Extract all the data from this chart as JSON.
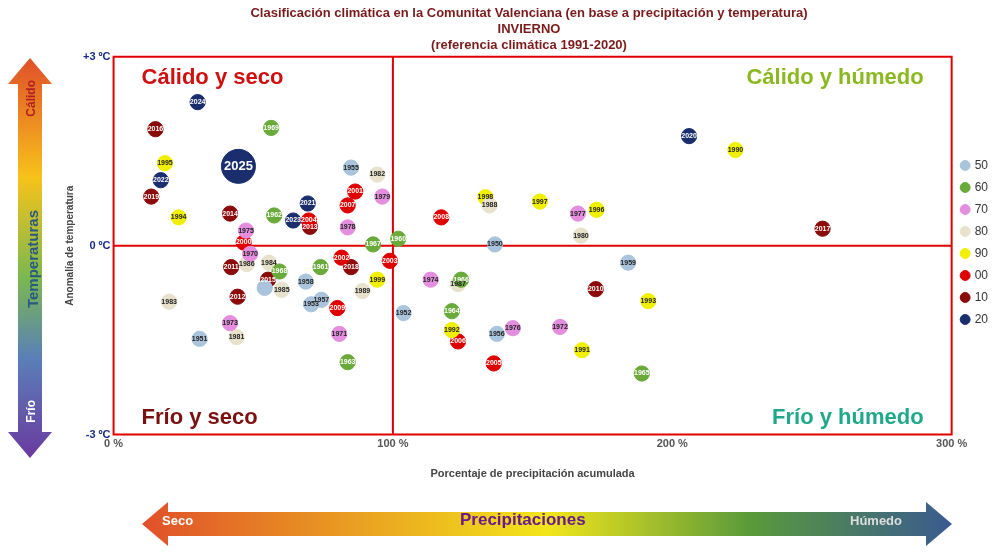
{
  "chart_data": {
    "type": "bubble",
    "title": "Clasificación climática en la Comunitat Valenciana (en base a precipitación y temperatura)",
    "subtitle": "INVIERNO\n(referencia climática 1991-2020)",
    "xlabel": "Porcentaje de precipitación acumulada",
    "ylabel": "Anomalía de temperatura",
    "xlim": [
      0,
      300
    ],
    "xticks": [
      {
        "value": 0,
        "label": "0 %"
      },
      {
        "value": 100,
        "label": "100 %"
      },
      {
        "value": 200,
        "label": "200 %"
      },
      {
        "value": 300,
        "label": "300 %"
      }
    ],
    "ylim": [
      -3,
      3
    ],
    "yticks": [
      {
        "value": -3,
        "label": "-3 ºC"
      },
      {
        "value": 0,
        "label": "0 ºC"
      },
      {
        "value": 3,
        "label": "+3 ºC"
      }
    ],
    "grid": false,
    "legend": "right",
    "ref_lines": [
      {
        "axis": "x",
        "value": 100,
        "color": "#e00000"
      },
      {
        "axis": "y",
        "value": 0,
        "color": "#e00000"
      }
    ],
    "annotations": [
      "Cálido y seco",
      "Cálido y húmedo",
      "Frío y seco",
      "Frío y húmedo",
      "Cálido",
      "Temperaturas",
      "Frío",
      "Seco",
      "Precipitaciones",
      "Húmedo",
      {
        "text": "1955",
        "x": 85.0,
        "y": 1.24
      },
      {
        "text": "1950",
        "x": 136.5,
        "y": 0.02
      },
      {
        "text": "1959",
        "x": 184.2,
        "y": -0.27
      },
      {
        "text": "1958",
        "x": 68.8,
        "y": -0.57
      },
      {
        "text": "1953",
        "x": 70.7,
        "y": -0.93
      },
      {
        "text": "1957",
        "x": 74.4,
        "y": -0.86
      },
      {
        "text": "1951",
        "x": 30.8,
        "y": -1.48
      },
      {
        "text": "1952",
        "x": 103.8,
        "y": -1.07
      },
      {
        "text": "1956",
        "x": 137.2,
        "y": -1.4
      },
      {
        "text": "1969",
        "x": 56.4,
        "y": 1.87
      },
      {
        "text": "1962",
        "x": 57.5,
        "y": 0.48
      },
      {
        "text": "1967",
        "x": 92.9,
        "y": 0.02
      },
      {
        "text": "1960",
        "x": 101.9,
        "y": 0.11
      },
      {
        "text": "1968",
        "x": 59.4,
        "y": -0.41
      },
      {
        "text": "1961",
        "x": 74.1,
        "y": -0.34
      },
      {
        "text": "1963",
        "x": 83.8,
        "y": -1.85
      },
      {
        "text": "1966",
        "x": 124.4,
        "y": -0.54
      },
      {
        "text": "1964",
        "x": 121.1,
        "y": -1.04
      },
      {
        "text": "1965",
        "x": 189.1,
        "y": -2.03
      },
      {
        "text": "1975",
        "x": 47.4,
        "y": 0.24
      },
      {
        "text": "1979",
        "x": 96.2,
        "y": 0.78
      },
      {
        "text": "1978",
        "x": 83.8,
        "y": 0.29
      },
      {
        "text": "1970",
        "x": 48.9,
        "y": -0.13
      },
      {
        "text": "1973",
        "x": 41.7,
        "y": -1.23
      },
      {
        "text": "1971",
        "x": 80.8,
        "y": -1.4
      },
      {
        "text": "1977",
        "x": 166.2,
        "y": 0.51
      },
      {
        "text": "1974",
        "x": 113.5,
        "y": -0.54
      },
      {
        "text": "1976",
        "x": 142.9,
        "y": -1.31
      },
      {
        "text": "1972",
        "x": 159.8,
        "y": -1.29
      },
      {
        "text": "1982",
        "x": 94.4,
        "y": 1.13
      },
      {
        "text": "1986",
        "x": 47.7,
        "y": -0.29
      },
      {
        "text": "1984",
        "x": 55.6,
        "y": -0.27
      },
      {
        "text": "1985",
        "x": 60.2,
        "y": -0.7
      },
      {
        "text": "1989",
        "x": 89.1,
        "y": -0.72
      },
      {
        "text": "1983",
        "x": 19.9,
        "y": -0.89
      },
      {
        "text": "1981",
        "x": 44.0,
        "y": -1.45
      },
      {
        "text": "1988",
        "x": 134.6,
        "y": 0.64
      },
      {
        "text": "1980",
        "x": 167.3,
        "y": 0.16
      },
      {
        "text": "1987",
        "x": 123.3,
        "y": -0.61
      },
      {
        "text": "1995",
        "x": 18.4,
        "y": 1.31
      },
      {
        "text": "1994",
        "x": 23.3,
        "y": 0.45
      },
      {
        "text": "1999",
        "x": 94.4,
        "y": -0.54
      },
      {
        "text": "1990",
        "x": 222.6,
        "y": 1.52
      },
      {
        "text": "1998",
        "x": 133.1,
        "y": 0.77
      },
      {
        "text": "1997",
        "x": 152.6,
        "y": 0.7
      },
      {
        "text": "1996",
        "x": 172.9,
        "y": 0.57
      },
      {
        "text": "1993",
        "x": 191.4,
        "y": -0.88
      },
      {
        "text": "1992",
        "x": 121.1,
        "y": -1.34
      },
      {
        "text": "1991",
        "x": 167.7,
        "y": -1.66
      },
      {
        "text": "2000",
        "x": 46.6,
        "y": 0.05
      },
      {
        "text": "2001",
        "x": 86.5,
        "y": 0.86
      },
      {
        "text": "2007",
        "x": 83.8,
        "y": 0.64
      },
      {
        "text": "2004",
        "x": 69.9,
        "y": 0.4
      },
      {
        "text": "2002",
        "x": 81.6,
        "y": -0.19
      },
      {
        "text": "2003",
        "x": 98.9,
        "y": -0.24
      },
      {
        "text": "2009",
        "x": 80.1,
        "y": -0.99
      },
      {
        "text": "2008",
        "x": 117.3,
        "y": 0.45
      },
      {
        "text": "2006",
        "x": 123.3,
        "y": -1.52
      },
      {
        "text": "2005",
        "x": 136.1,
        "y": -1.87
      },
      {
        "text": "2016",
        "x": 15.0,
        "y": 1.85
      },
      {
        "text": "2019",
        "x": 13.5,
        "y": 0.78
      },
      {
        "text": "2014",
        "x": 41.7,
        "y": 0.51
      },
      {
        "text": "2013",
        "x": 70.3,
        "y": 0.3
      },
      {
        "text": "2011",
        "x": 42.1,
        "y": -0.34
      },
      {
        "text": "2015",
        "x": 55.3,
        "y": -0.54
      },
      {
        "text": "2012",
        "x": 44.4,
        "y": -0.81
      },
      {
        "text": "2018",
        "x": 85.0,
        "y": -0.34
      },
      {
        "text": "2010",
        "x": 172.6,
        "y": -0.69
      },
      {
        "text": "2017",
        "x": 253.8,
        "y": 0.27
      },
      {
        "text": "2024",
        "x": 30.1,
        "y": 2.28
      },
      {
        "text": "2025",
        "x": 44.7,
        "y": 1.26
      },
      {
        "text": "2022",
        "x": 16.9,
        "y": 1.04
      },
      {
        "text": "2021",
        "x": 69.5,
        "y": 0.67
      },
      {
        "text": "2023",
        "x": 64.3,
        "y": 0.4
      },
      {
        "text": "2020",
        "x": 206.0,
        "y": 1.74
      }
    ],
    "series": [
      {
        "name": "50",
        "color": "#a9c4dc",
        "x": [
          85.0,
          136.5,
          184.2,
          68.8,
          54.1,
          70.7,
          74.4,
          30.8,
          103.8,
          137.2
        ],
        "values": [
          1.24,
          0.02,
          -0.27,
          -0.57,
          -0.67,
          -0.93,
          -0.86,
          -1.48,
          -1.07,
          -1.4
        ],
        "sizes": [
          0.2,
          0.2,
          0.2,
          0.2,
          0.2,
          0.2,
          0.2,
          0.2,
          0.2,
          0.2
        ]
      },
      {
        "name": "60",
        "color": "#6aaa3a",
        "x": [
          56.4,
          57.5,
          92.9,
          101.9,
          59.4,
          74.1,
          83.8,
          124.4,
          121.1,
          189.1
        ],
        "values": [
          1.87,
          0.48,
          0.02,
          0.11,
          -0.41,
          -0.34,
          -1.85,
          -0.54,
          -1.04,
          -2.03
        ],
        "sizes": [
          0.2,
          0.2,
          0.2,
          0.2,
          0.2,
          0.2,
          0.2,
          0.2,
          0.2,
          0.2
        ]
      },
      {
        "name": "70",
        "color": "#e58ee0",
        "x": [
          47.4,
          96.2,
          83.8,
          48.9,
          41.7,
          80.8,
          166.2,
          113.5,
          142.9,
          159.8
        ],
        "values": [
          0.24,
          0.78,
          0.29,
          -0.13,
          -1.23,
          -1.4,
          0.51,
          -0.54,
          -1.31,
          -1.29
        ],
        "sizes": [
          0.2,
          0.2,
          0.2,
          0.2,
          0.2,
          0.2,
          0.2,
          0.2,
          0.2,
          0.2
        ]
      },
      {
        "name": "80",
        "color": "#e8e2cc",
        "x": [
          94.4,
          47.7,
          55.6,
          60.2,
          89.1,
          19.9,
          44.0,
          134.6,
          167.3,
          123.3
        ],
        "values": [
          1.13,
          -0.29,
          -0.27,
          -0.7,
          -0.72,
          -0.89,
          -1.45,
          0.64,
          0.16,
          -0.61
        ],
        "sizes": [
          0.2,
          0.2,
          0.2,
          0.2,
          0.2,
          0.2,
          0.2,
          0.2,
          0.2,
          0.2
        ]
      },
      {
        "name": "90",
        "color": "#f0f000",
        "x": [
          18.4,
          23.3,
          94.4,
          222.6,
          133.1,
          152.6,
          172.9,
          191.4,
          121.1,
          167.7
        ],
        "values": [
          1.31,
          0.45,
          -0.54,
          1.52,
          0.77,
          0.7,
          0.57,
          -0.88,
          -1.34,
          -1.66
        ],
        "sizes": [
          0.2,
          0.2,
          0.2,
          0.2,
          0.2,
          0.2,
          0.2,
          0.2,
          0.2,
          0.2
        ]
      },
      {
        "name": "00",
        "color": "#e00000",
        "x": [
          46.6,
          86.5,
          83.8,
          69.9,
          81.6,
          98.9,
          80.1,
          117.3,
          123.3,
          136.1
        ],
        "values": [
          0.05,
          0.86,
          0.64,
          0.4,
          -0.19,
          -0.24,
          -0.99,
          0.45,
          -1.52,
          -1.87
        ],
        "sizes": [
          0.2,
          0.2,
          0.2,
          0.2,
          0.2,
          0.2,
          0.2,
          0.2,
          0.2,
          0.2
        ]
      },
      {
        "name": "10",
        "color": "#8b0a0a",
        "x": [
          15.0,
          13.5,
          41.7,
          70.3,
          42.1,
          55.3,
          44.4,
          85.0,
          172.6,
          253.8
        ],
        "values": [
          1.85,
          0.78,
          0.51,
          0.3,
          -0.34,
          -0.54,
          -0.81,
          -0.34,
          -0.69,
          0.27
        ],
        "sizes": [
          0.2,
          0.2,
          0.2,
          0.2,
          0.2,
          0.2,
          0.2,
          0.2,
          0.2,
          0.2
        ]
      },
      {
        "name": "20",
        "color": "#1a2e6e",
        "x": [
          30.1,
          44.7,
          16.9,
          69.5,
          64.3,
          206.0
        ],
        "values": [
          2.28,
          1.26,
          1.04,
          0.67,
          0.4,
          1.74
        ],
        "sizes": [
          0.2,
          1,
          0.2,
          0.2,
          0.2,
          0.2
        ]
      }
    ]
  }
}
